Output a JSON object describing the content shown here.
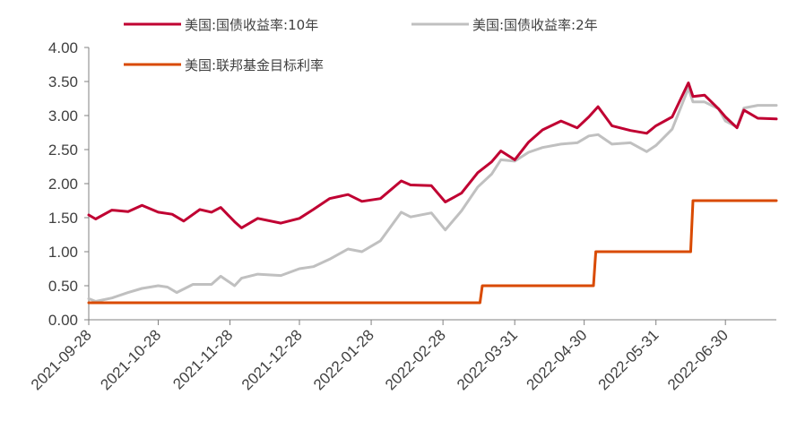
{
  "chart_data": {
    "type": "line",
    "x_dates": [
      "2021-09-28",
      "2021-10-28",
      "2021-11-28",
      "2021-12-28",
      "2022-01-28",
      "2022-02-28",
      "2022-03-31",
      "2022-04-30",
      "2022-05-31",
      "2022-06-30"
    ],
    "x_range": [
      "2021-09-28",
      "2022-07-22"
    ],
    "ylim": [
      0,
      4
    ],
    "y_ticks": [
      "0.00",
      "0.50",
      "1.00",
      "1.50",
      "2.00",
      "2.50",
      "3.00",
      "3.50",
      "4.00"
    ],
    "grid": false,
    "legend_position": "top",
    "series": [
      {
        "name": "美国:国债收益率:10年",
        "color": "#C00032",
        "points": [
          [
            "2021-09-28",
            1.54
          ],
          [
            "2021-10-01",
            1.48
          ],
          [
            "2021-10-08",
            1.61
          ],
          [
            "2021-10-15",
            1.59
          ],
          [
            "2021-10-21",
            1.68
          ],
          [
            "2021-10-28",
            1.58
          ],
          [
            "2021-11-03",
            1.55
          ],
          [
            "2021-11-08",
            1.45
          ],
          [
            "2021-11-15",
            1.62
          ],
          [
            "2021-11-20",
            1.58
          ],
          [
            "2021-11-24",
            1.65
          ],
          [
            "2021-11-30",
            1.44
          ],
          [
            "2021-12-03",
            1.35
          ],
          [
            "2021-12-10",
            1.49
          ],
          [
            "2021-12-20",
            1.42
          ],
          [
            "2021-12-28",
            1.49
          ],
          [
            "2022-01-03",
            1.62
          ],
          [
            "2022-01-10",
            1.78
          ],
          [
            "2022-01-18",
            1.84
          ],
          [
            "2022-01-24",
            1.74
          ],
          [
            "2022-02-01",
            1.78
          ],
          [
            "2022-02-10",
            2.04
          ],
          [
            "2022-02-14",
            1.98
          ],
          [
            "2022-02-23",
            1.97
          ],
          [
            "2022-03-01",
            1.73
          ],
          [
            "2022-03-08",
            1.86
          ],
          [
            "2022-03-15",
            2.16
          ],
          [
            "2022-03-21",
            2.32
          ],
          [
            "2022-03-25",
            2.48
          ],
          [
            "2022-03-31",
            2.35
          ],
          [
            "2022-04-06",
            2.61
          ],
          [
            "2022-04-12",
            2.79
          ],
          [
            "2022-04-20",
            2.92
          ],
          [
            "2022-04-27",
            2.82
          ],
          [
            "2022-05-02",
            2.98
          ],
          [
            "2022-05-06",
            3.13
          ],
          [
            "2022-05-12",
            2.85
          ],
          [
            "2022-05-20",
            2.78
          ],
          [
            "2022-05-27",
            2.74
          ],
          [
            "2022-05-31",
            2.85
          ],
          [
            "2022-06-07",
            2.98
          ],
          [
            "2022-06-14",
            3.48
          ],
          [
            "2022-06-16",
            3.28
          ],
          [
            "2022-06-21",
            3.3
          ],
          [
            "2022-06-27",
            3.1
          ],
          [
            "2022-06-30",
            2.98
          ],
          [
            "2022-07-05",
            2.82
          ],
          [
            "2022-07-08",
            3.08
          ],
          [
            "2022-07-14",
            2.96
          ],
          [
            "2022-07-22",
            2.95
          ]
        ]
      },
      {
        "name": "美国:国债收益率:2年",
        "color": "#C0C0C0",
        "points": [
          [
            "2021-09-28",
            0.31
          ],
          [
            "2021-10-01",
            0.27
          ],
          [
            "2021-10-08",
            0.32
          ],
          [
            "2021-10-15",
            0.4
          ],
          [
            "2021-10-21",
            0.46
          ],
          [
            "2021-10-28",
            0.5
          ],
          [
            "2021-11-01",
            0.48
          ],
          [
            "2021-11-05",
            0.4
          ],
          [
            "2021-11-12",
            0.52
          ],
          [
            "2021-11-20",
            0.52
          ],
          [
            "2021-11-24",
            0.64
          ],
          [
            "2021-11-30",
            0.5
          ],
          [
            "2021-12-03",
            0.61
          ],
          [
            "2021-12-10",
            0.67
          ],
          [
            "2021-12-20",
            0.65
          ],
          [
            "2021-12-28",
            0.75
          ],
          [
            "2022-01-03",
            0.78
          ],
          [
            "2022-01-10",
            0.89
          ],
          [
            "2022-01-18",
            1.04
          ],
          [
            "2022-01-24",
            1.0
          ],
          [
            "2022-02-01",
            1.16
          ],
          [
            "2022-02-10",
            1.58
          ],
          [
            "2022-02-14",
            1.51
          ],
          [
            "2022-02-23",
            1.57
          ],
          [
            "2022-03-01",
            1.32
          ],
          [
            "2022-03-08",
            1.6
          ],
          [
            "2022-03-15",
            1.95
          ],
          [
            "2022-03-21",
            2.14
          ],
          [
            "2022-03-25",
            2.35
          ],
          [
            "2022-03-31",
            2.33
          ],
          [
            "2022-04-06",
            2.46
          ],
          [
            "2022-04-12",
            2.53
          ],
          [
            "2022-04-20",
            2.58
          ],
          [
            "2022-04-27",
            2.6
          ],
          [
            "2022-05-02",
            2.7
          ],
          [
            "2022-05-06",
            2.72
          ],
          [
            "2022-05-12",
            2.58
          ],
          [
            "2022-05-20",
            2.6
          ],
          [
            "2022-05-27",
            2.47
          ],
          [
            "2022-05-31",
            2.56
          ],
          [
            "2022-06-07",
            2.8
          ],
          [
            "2022-06-14",
            3.4
          ],
          [
            "2022-06-16",
            3.2
          ],
          [
            "2022-06-21",
            3.2
          ],
          [
            "2022-06-27",
            3.1
          ],
          [
            "2022-06-30",
            2.92
          ],
          [
            "2022-07-05",
            2.83
          ],
          [
            "2022-07-08",
            3.11
          ],
          [
            "2022-07-14",
            3.15
          ],
          [
            "2022-07-22",
            3.15
          ]
        ]
      },
      {
        "name": "美国:联邦基金目标利率",
        "color": "#D94A00",
        "step": true,
        "points": [
          [
            "2021-09-28",
            0.25
          ],
          [
            "2022-03-16",
            0.25
          ],
          [
            "2022-03-17",
            0.5
          ],
          [
            "2022-05-04",
            0.5
          ],
          [
            "2022-05-05",
            1.0
          ],
          [
            "2022-06-15",
            1.0
          ],
          [
            "2022-06-16",
            1.75
          ],
          [
            "2022-07-22",
            1.75
          ]
        ]
      }
    ]
  }
}
